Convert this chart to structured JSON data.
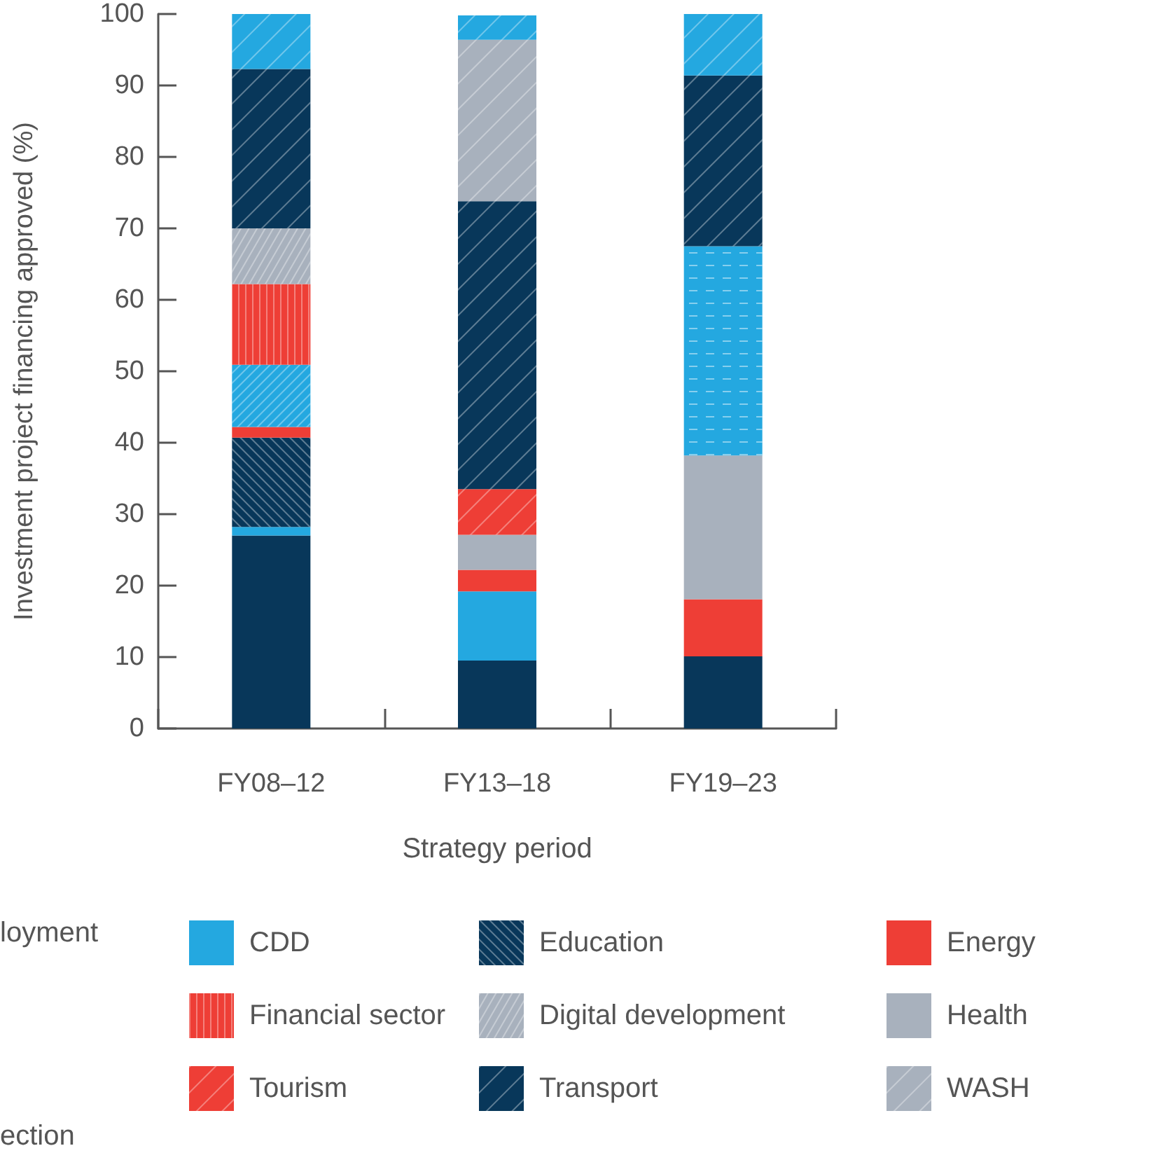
{
  "chart_data": {
    "type": "bar",
    "stacked": true,
    "xlabel": "Strategy period",
    "ylabel": "Investment project financing approved (%)",
    "categories": [
      "FY08–12",
      "FY13–18",
      "FY19–23"
    ],
    "ylim": [
      0,
      100
    ],
    "yticks": [
      0,
      10,
      20,
      30,
      40,
      50,
      60,
      70,
      80,
      90,
      100
    ],
    "grid": false,
    "legend": "bottom",
    "series": [
      {
        "color": "#08375a",
        "values": [
          27,
          9.5,
          10.1
        ]
      },
      {
        "name": "CDD",
        "color": "#24a8e0",
        "values": [
          1.2,
          9.7,
          null
        ]
      },
      {
        "name": "Education",
        "color": "#08375a",
        "values": [
          12.5,
          null,
          null
        ]
      },
      {
        "name": "Energy",
        "color": "#ee3e36",
        "values": [
          1.5,
          3.0,
          8.0
        ]
      },
      {
        "color": "#24a8e0",
        "values": [
          8.7,
          null,
          null
        ]
      },
      {
        "name": "Financial sector",
        "color": "#ee3e36",
        "values": [
          11.3,
          null,
          null
        ]
      },
      {
        "name": "Digital development",
        "color": "#a8b1bd",
        "values": [
          7.8,
          null,
          null
        ]
      },
      {
        "name": "Health",
        "color": "#a8b1bd",
        "values": [
          null,
          4.9,
          20.1
        ]
      },
      {
        "name": "Tourism",
        "color": "#ee3e36",
        "values": [
          null,
          6.4,
          null
        ]
      },
      {
        "color": "#24a8e0",
        "values": [
          null,
          null,
          29.3
        ]
      },
      {
        "name": "Transport",
        "color": "#08375a",
        "values": [
          22.3,
          40.3,
          23.9
        ]
      },
      {
        "name": "WASH",
        "color": "#a8b1bd",
        "values": [
          null,
          22.6,
          null
        ]
      },
      {
        "color": "#24a8e0",
        "values": [
          7.8,
          3.4,
          8.6
        ]
      }
    ],
    "annotations": [
      "loyment",
      "ection"
    ]
  }
}
